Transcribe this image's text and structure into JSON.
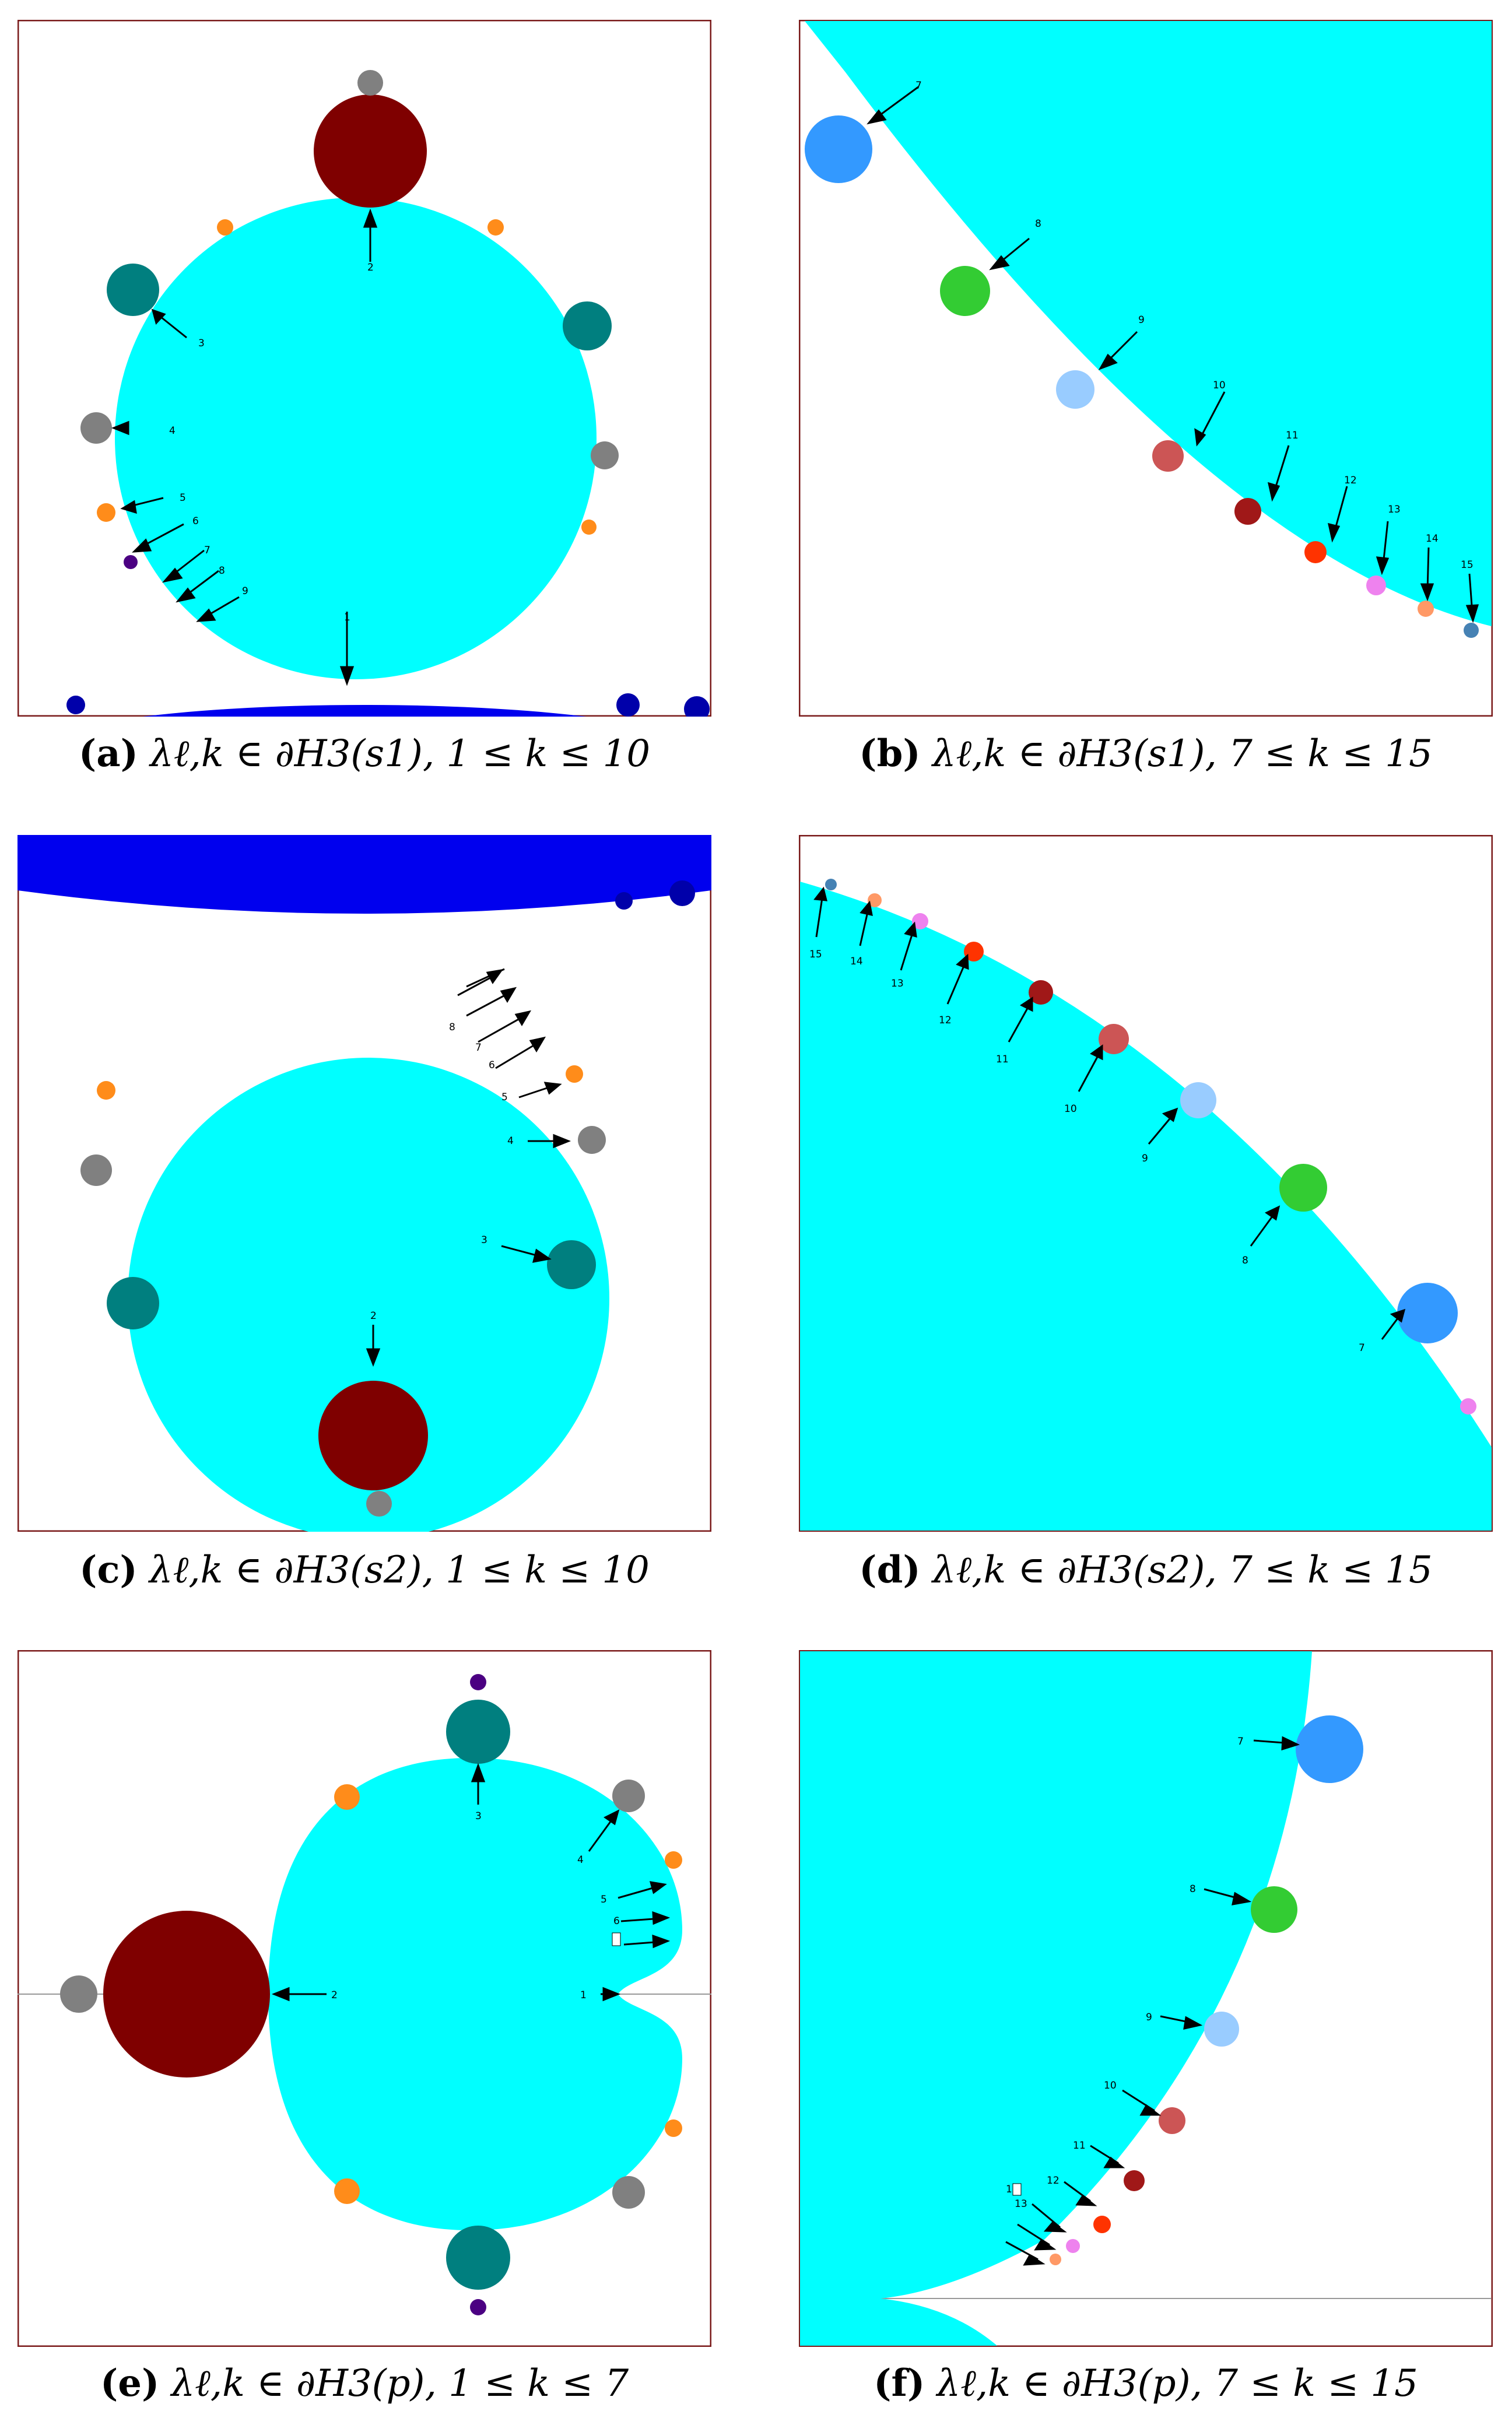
{
  "figure": {
    "panels": [
      {
        "id": "a",
        "caption_label": "(a)",
        "caption_math": "λℓ,k ∈ ∂H3(s1), 1 ≤ k ≤ 10",
        "arrow_labels": [
          "1",
          "2",
          "3",
          "4",
          "5",
          "6",
          "7",
          "8",
          "9"
        ]
      },
      {
        "id": "b",
        "caption_label": "(b)",
        "caption_math": "λℓ,k ∈ ∂H3(s1), 7 ≤ k ≤ 15",
        "arrow_labels": [
          "7",
          "8",
          "9",
          "10",
          "11",
          "12",
          "13",
          "14",
          "15"
        ]
      },
      {
        "id": "c",
        "caption_label": "(c)",
        "caption_math": "λℓ,k ∈ ∂H3(s2), 1 ≤ k ≤ 10",
        "arrow_labels": [
          "2",
          "3",
          "4",
          "5",
          "6",
          "7",
          "8"
        ]
      },
      {
        "id": "d",
        "caption_label": "(d)",
        "caption_math": "λℓ,k ∈ ∂H3(s2), 7 ≤ k ≤ 15",
        "arrow_labels": [
          "7",
          "8",
          "9",
          "10",
          "11",
          "12",
          "13",
          "14",
          "15"
        ]
      },
      {
        "id": "e",
        "caption_label": "(e)",
        "caption_math": "λℓ,k ∈ ∂H3(p), 1 ≤ k ≤ 7",
        "arrow_labels": [
          "1",
          "2",
          "3",
          "4",
          "5",
          "6"
        ]
      },
      {
        "id": "f",
        "caption_label": "(f)",
        "caption_math": "λℓ,k ∈ ∂H3(p), 7 ≤ k ≤ 15",
        "arrow_labels": [
          "1",
          "7",
          "8",
          "9",
          "10",
          "11",
          "12",
          "13"
        ]
      }
    ],
    "colors": {
      "main_component": "#00ffff",
      "blue_component": "#0000ee",
      "dark_red": "#7f0000",
      "teal": "#007f7f",
      "gray": "#808080",
      "orange": "#ff8c1a",
      "purple": "#4b0082",
      "green": "#33cc33",
      "azure": "#3399ff",
      "light_blue": "#99ccff",
      "indian_red": "#cc5555",
      "maroon": "#a01818",
      "red_orange": "#ff3300",
      "violet": "#ee82ee",
      "salmon": "#ff9966",
      "steel": "#4682b4",
      "frame": "#7a1a1a"
    }
  }
}
